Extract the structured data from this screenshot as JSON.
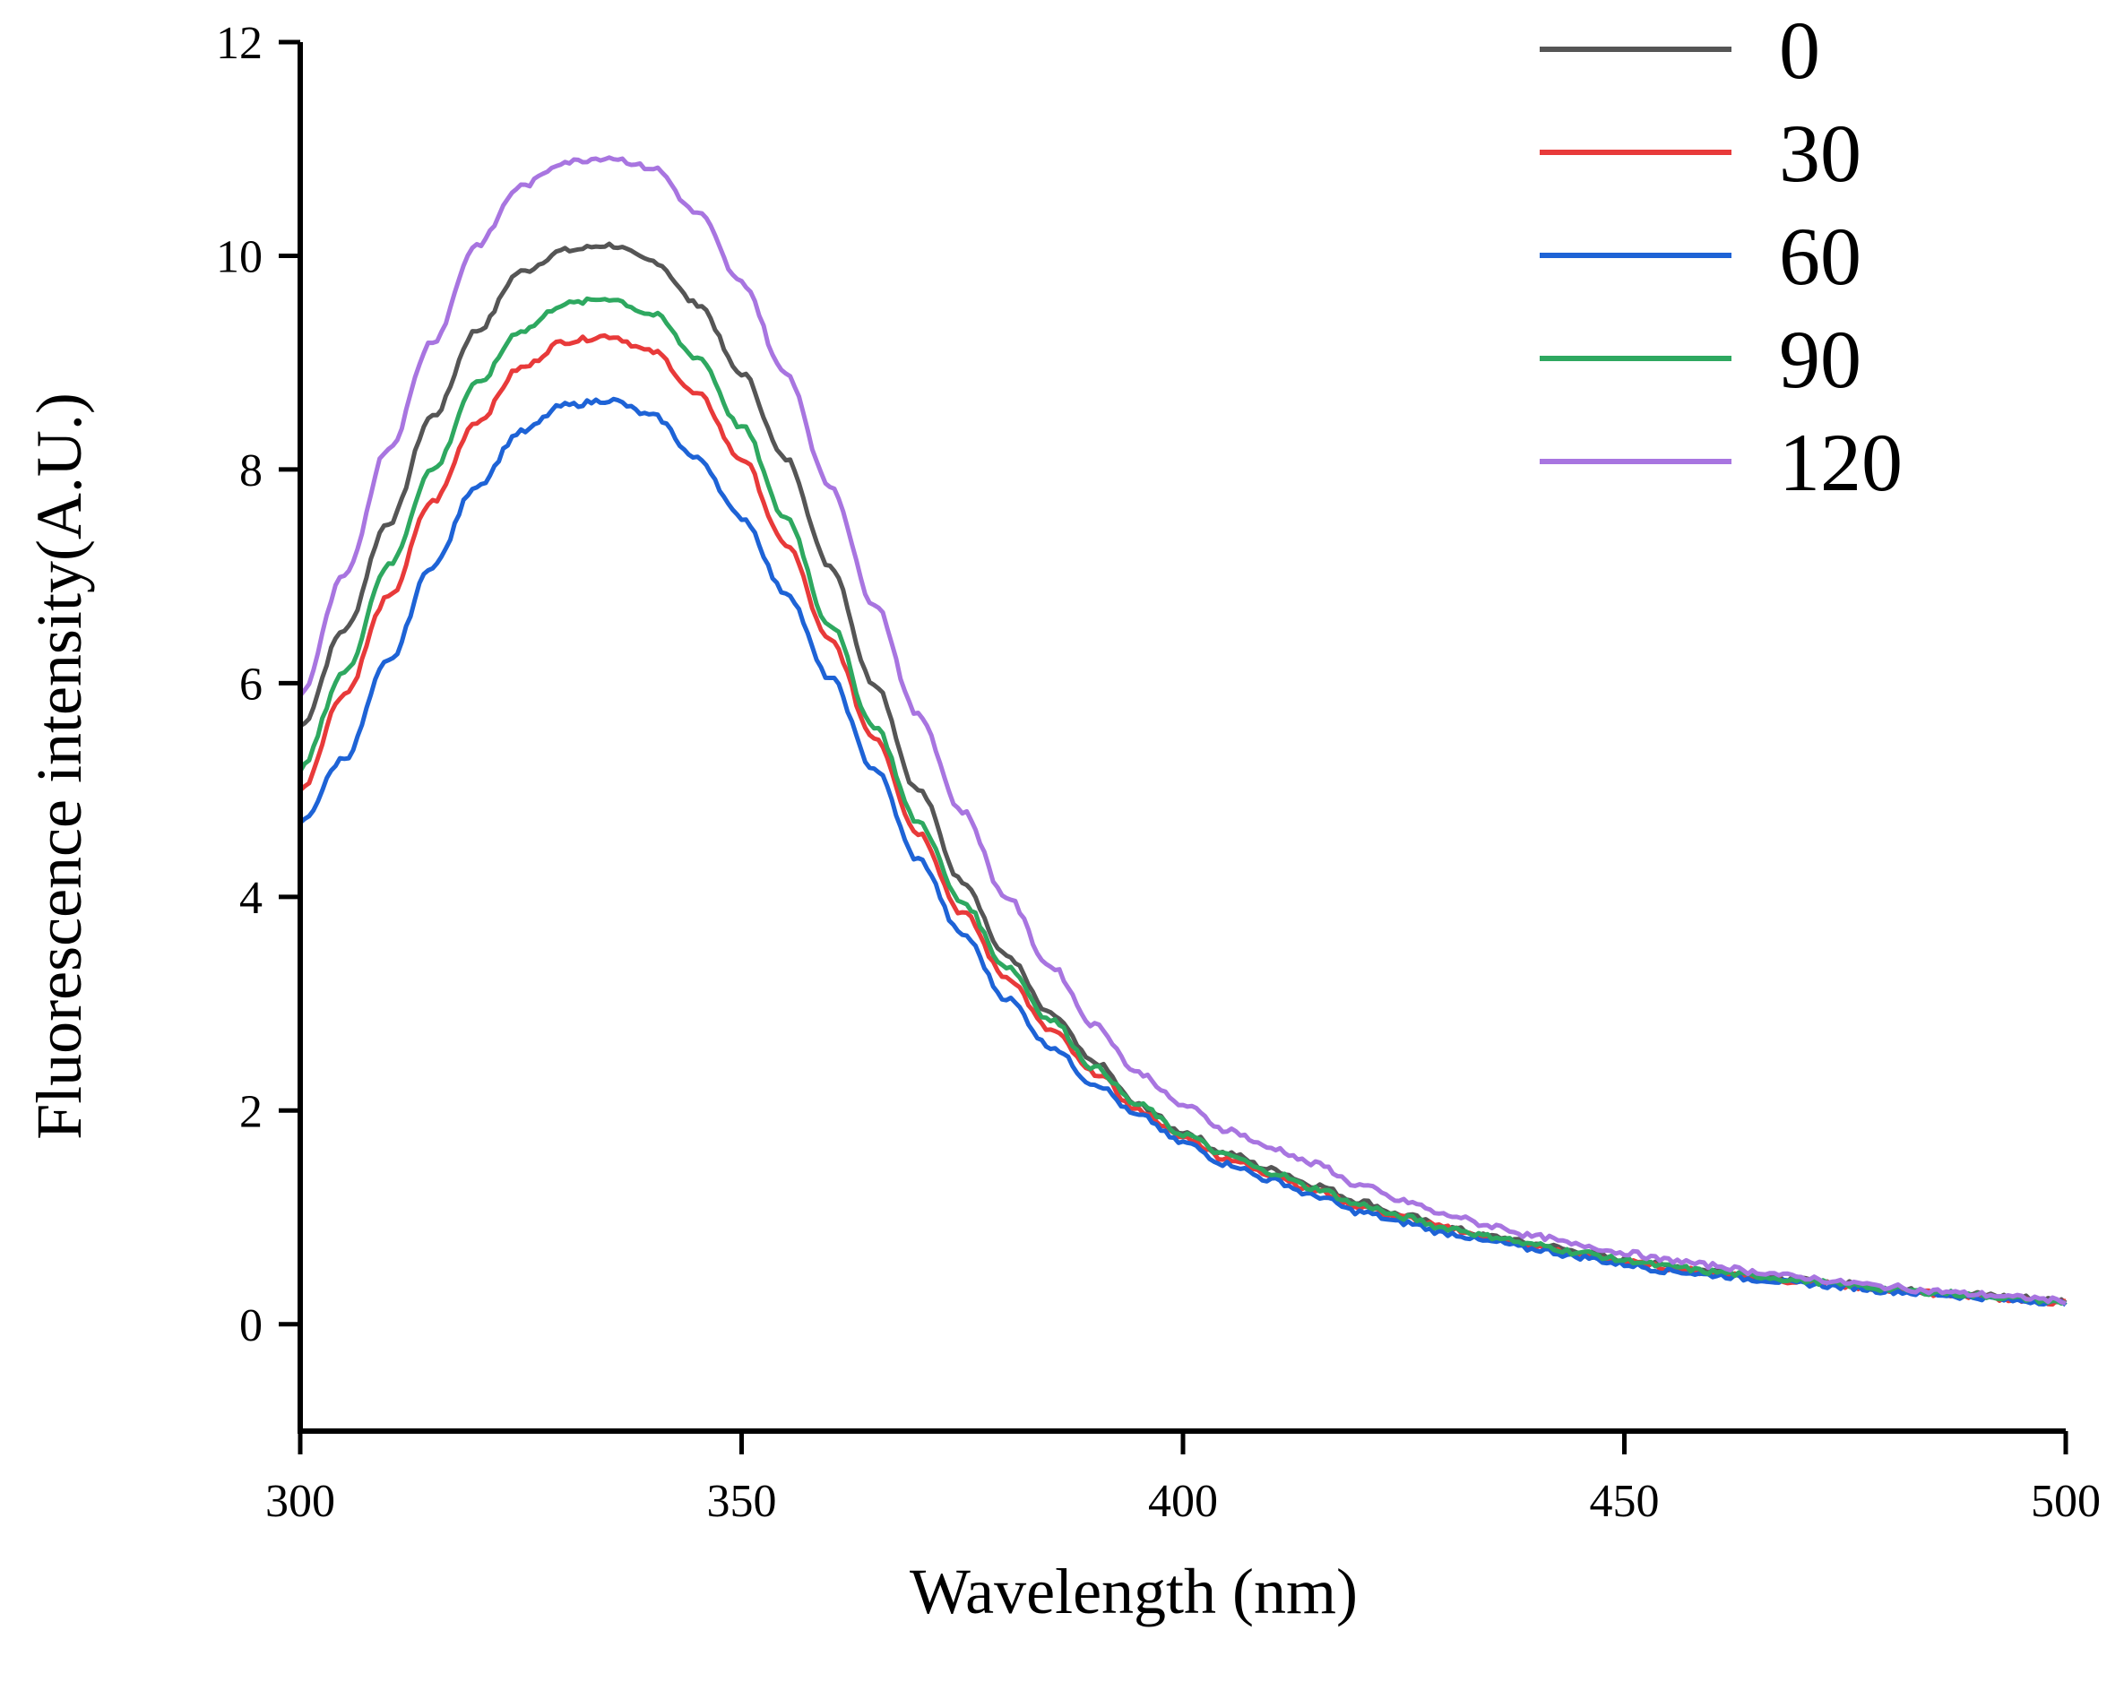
{
  "chart_data": {
    "type": "line",
    "title": "",
    "xlabel": "Wavelength (nm)",
    "ylabel": "Fluorescence intensity(A.U.)",
    "xlim": [
      300,
      500
    ],
    "ylim": [
      -1,
      12
    ],
    "xticks": [
      300,
      350,
      400,
      450,
      500
    ],
    "yticks": [
      0,
      2,
      4,
      6,
      8,
      10,
      12
    ],
    "grid": false,
    "legend_position": "top-right",
    "x": [
      300,
      305,
      310,
      315,
      320,
      325,
      330,
      335,
      340,
      345,
      350,
      355,
      360,
      365,
      370,
      375,
      380,
      385,
      390,
      395,
      400,
      405,
      410,
      415,
      420,
      425,
      430,
      435,
      440,
      445,
      450,
      455,
      460,
      465,
      470,
      475,
      480,
      485,
      490,
      495,
      500
    ],
    "series": [
      {
        "name": "0",
        "color": "#555555",
        "values": [
          5.6,
          6.5,
          7.5,
          8.5,
          9.3,
          9.85,
          10.05,
          10.1,
          9.95,
          9.55,
          8.9,
          8.1,
          7.1,
          6.0,
          5.0,
          4.15,
          3.45,
          2.9,
          2.45,
          2.05,
          1.8,
          1.6,
          1.45,
          1.3,
          1.15,
          1.02,
          0.9,
          0.82,
          0.75,
          0.68,
          0.6,
          0.55,
          0.5,
          0.45,
          0.42,
          0.38,
          0.33,
          0.3,
          0.28,
          0.25,
          0.22
        ]
      },
      {
        "name": "30",
        "color": "#e83a3a",
        "values": [
          5.0,
          5.9,
          6.8,
          7.7,
          8.45,
          8.95,
          9.2,
          9.25,
          9.1,
          8.7,
          8.1,
          7.3,
          6.4,
          5.5,
          4.6,
          3.85,
          3.25,
          2.75,
          2.35,
          2.0,
          1.75,
          1.55,
          1.4,
          1.25,
          1.1,
          1.0,
          0.9,
          0.8,
          0.72,
          0.65,
          0.58,
          0.53,
          0.48,
          0.44,
          0.4,
          0.36,
          0.32,
          0.29,
          0.26,
          0.23,
          0.2
        ]
      },
      {
        "name": "60",
        "color": "#1e63d6",
        "values": [
          4.7,
          5.3,
          6.2,
          7.1,
          7.85,
          8.35,
          8.6,
          8.65,
          8.5,
          8.1,
          7.55,
          6.85,
          6.05,
          5.2,
          4.35,
          3.65,
          3.05,
          2.6,
          2.25,
          1.95,
          1.7,
          1.5,
          1.35,
          1.2,
          1.05,
          0.95,
          0.85,
          0.77,
          0.7,
          0.63,
          0.56,
          0.5,
          0.46,
          0.42,
          0.38,
          0.35,
          0.31,
          0.28,
          0.25,
          0.22,
          0.2
        ]
      },
      {
        "name": "90",
        "color": "#2ea860",
        "values": [
          5.2,
          6.1,
          7.1,
          8.0,
          8.8,
          9.3,
          9.55,
          9.6,
          9.45,
          9.05,
          8.4,
          7.55,
          6.55,
          5.6,
          4.7,
          3.95,
          3.35,
          2.85,
          2.4,
          2.05,
          1.78,
          1.58,
          1.42,
          1.27,
          1.12,
          1.0,
          0.9,
          0.82,
          0.74,
          0.67,
          0.6,
          0.54,
          0.49,
          0.45,
          0.41,
          0.37,
          0.33,
          0.3,
          0.27,
          0.24,
          0.2
        ]
      },
      {
        "name": "120",
        "color": "#a875e0",
        "values": [
          5.9,
          7.0,
          8.2,
          9.2,
          10.1,
          10.65,
          10.88,
          10.92,
          10.82,
          10.4,
          9.75,
          8.9,
          7.85,
          6.75,
          5.7,
          4.8,
          4.0,
          3.35,
          2.8,
          2.35,
          2.05,
          1.82,
          1.65,
          1.5,
          1.3,
          1.15,
          1.02,
          0.92,
          0.82,
          0.74,
          0.67,
          0.6,
          0.55,
          0.49,
          0.44,
          0.39,
          0.35,
          0.31,
          0.28,
          0.25,
          0.22
        ]
      }
    ]
  }
}
